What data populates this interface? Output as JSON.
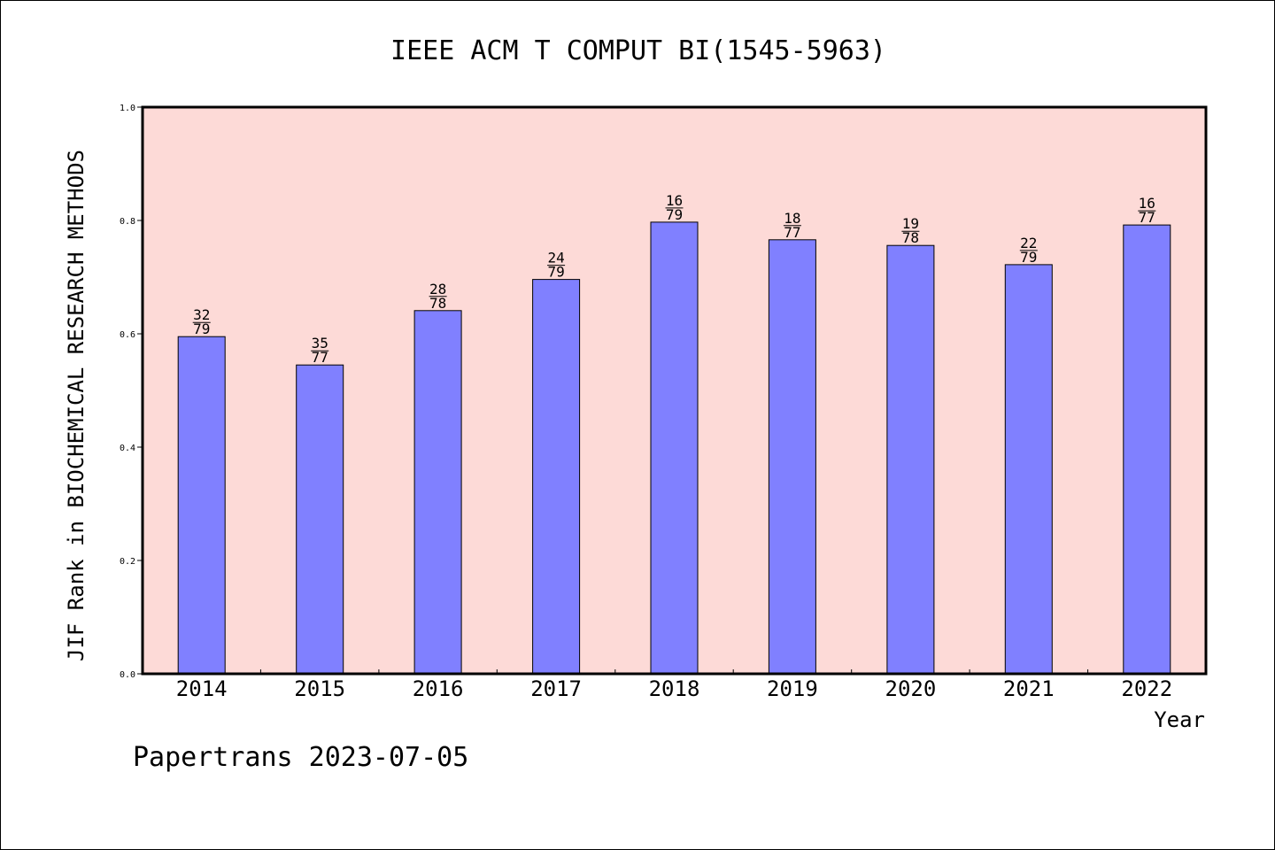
{
  "footer": {
    "text": "Papertrans 2023-07-05"
  },
  "colors": {
    "plot_background": "#fddad7",
    "bar_fill": "#8080ff",
    "bar_stroke": "#000000",
    "axis": "#000000"
  },
  "chart_data": {
    "type": "bar",
    "title": "IEEE ACM T COMPUT BI(1545-5963)",
    "xlabel": "Year",
    "ylabel": "JIF Rank in BIOCHEMICAL RESEARCH METHODS",
    "ylim": [
      0,
      1.0
    ],
    "yticks": [
      "0.0",
      "0.2",
      "0.4",
      "0.6",
      "0.8",
      "1.0"
    ],
    "grid": false,
    "categories": [
      "2014",
      "2015",
      "2016",
      "2017",
      "2018",
      "2019",
      "2020",
      "2021",
      "2022"
    ],
    "values": [
      0.595,
      0.545,
      0.641,
      0.696,
      0.797,
      0.766,
      0.756,
      0.722,
      0.792
    ],
    "bar_labels": [
      {
        "rank": "32",
        "total": "79"
      },
      {
        "rank": "35",
        "total": "77"
      },
      {
        "rank": "28",
        "total": "78"
      },
      {
        "rank": "24",
        "total": "79"
      },
      {
        "rank": "16",
        "total": "79"
      },
      {
        "rank": "18",
        "total": "77"
      },
      {
        "rank": "19",
        "total": "78"
      },
      {
        "rank": "22",
        "total": "79"
      },
      {
        "rank": "16",
        "total": "77"
      }
    ]
  }
}
